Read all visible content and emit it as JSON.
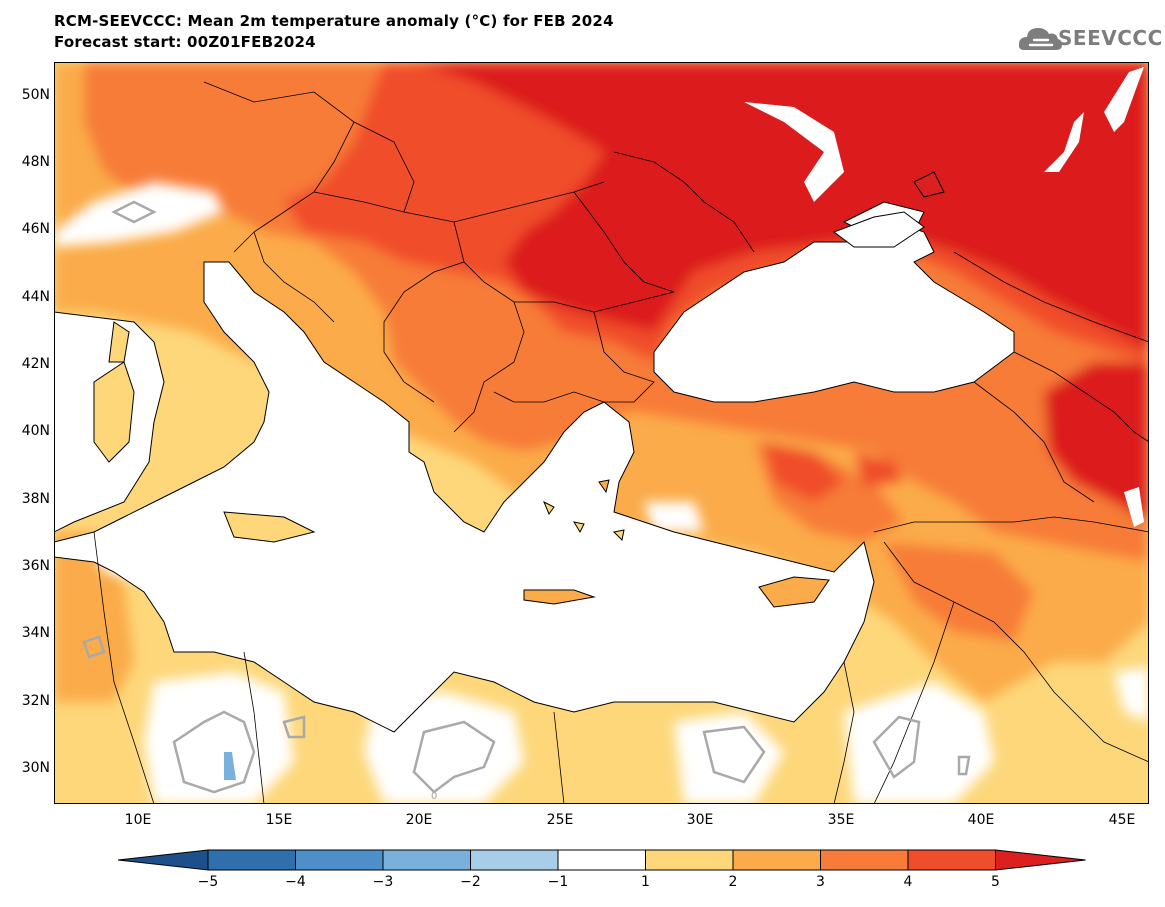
{
  "header": {
    "title": "RCM-SEEVCCC: Mean 2m temperature anomaly (°C) for FEB 2024",
    "subtitle": "Forecast start: 00Z01FEB2024"
  },
  "logo": {
    "text": "SEEVCCC",
    "icon": "cloud-icon"
  },
  "map": {
    "variable": "Mean 2m temperature anomaly",
    "units": "°C",
    "extent": {
      "lon_min": 7,
      "lon_max": 46,
      "lat_min": 29,
      "lat_max": 51
    },
    "lat_labels": [
      "50N",
      "48N",
      "46N",
      "44N",
      "42N",
      "40N",
      "38N",
      "36N",
      "34N",
      "32N",
      "30N"
    ],
    "lon_labels": [
      "10E",
      "15E",
      "20E",
      "25E",
      "30E",
      "35E",
      "40E",
      "45E"
    ],
    "contour_label": "0"
  },
  "colorbar": {
    "ticks": [
      "−5",
      "−4",
      "−3",
      "−2",
      "−1",
      "1",
      "2",
      "3",
      "4",
      "5"
    ],
    "colors": [
      "#1d4f8a",
      "#2f6fae",
      "#4d8fc9",
      "#79b1dc",
      "#a8cde8",
      "#ffffff",
      "#fdd77a",
      "#fbab4a",
      "#f77c39",
      "#f04d2c",
      "#dc1f1f"
    ]
  }
}
